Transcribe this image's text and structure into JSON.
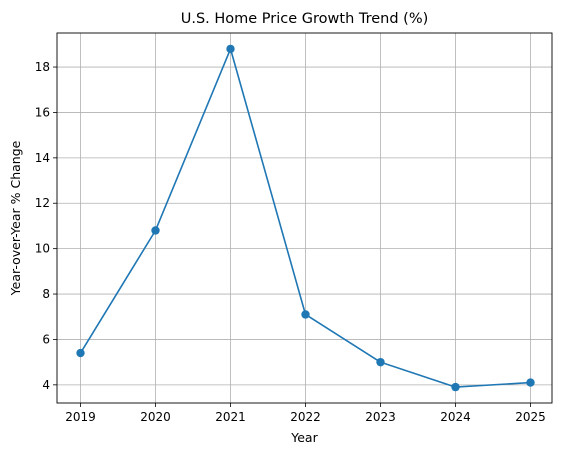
{
  "chart_data": {
    "type": "line",
    "title": "U.S. Home Price Growth Trend (%)",
    "xlabel": "Year",
    "ylabel": "Year-over-Year % Change",
    "x": [
      "2019",
      "2020",
      "2021",
      "2022",
      "2023",
      "2024",
      "2025"
    ],
    "values": [
      5.4,
      10.8,
      18.8,
      7.1,
      5.0,
      3.9,
      4.1
    ],
    "ylim": [
      3.2,
      19.5
    ],
    "yticks": [
      4,
      6,
      8,
      10,
      12,
      14,
      16,
      18
    ],
    "grid": true,
    "marker": "circle",
    "line_color": "#1f77b4"
  }
}
